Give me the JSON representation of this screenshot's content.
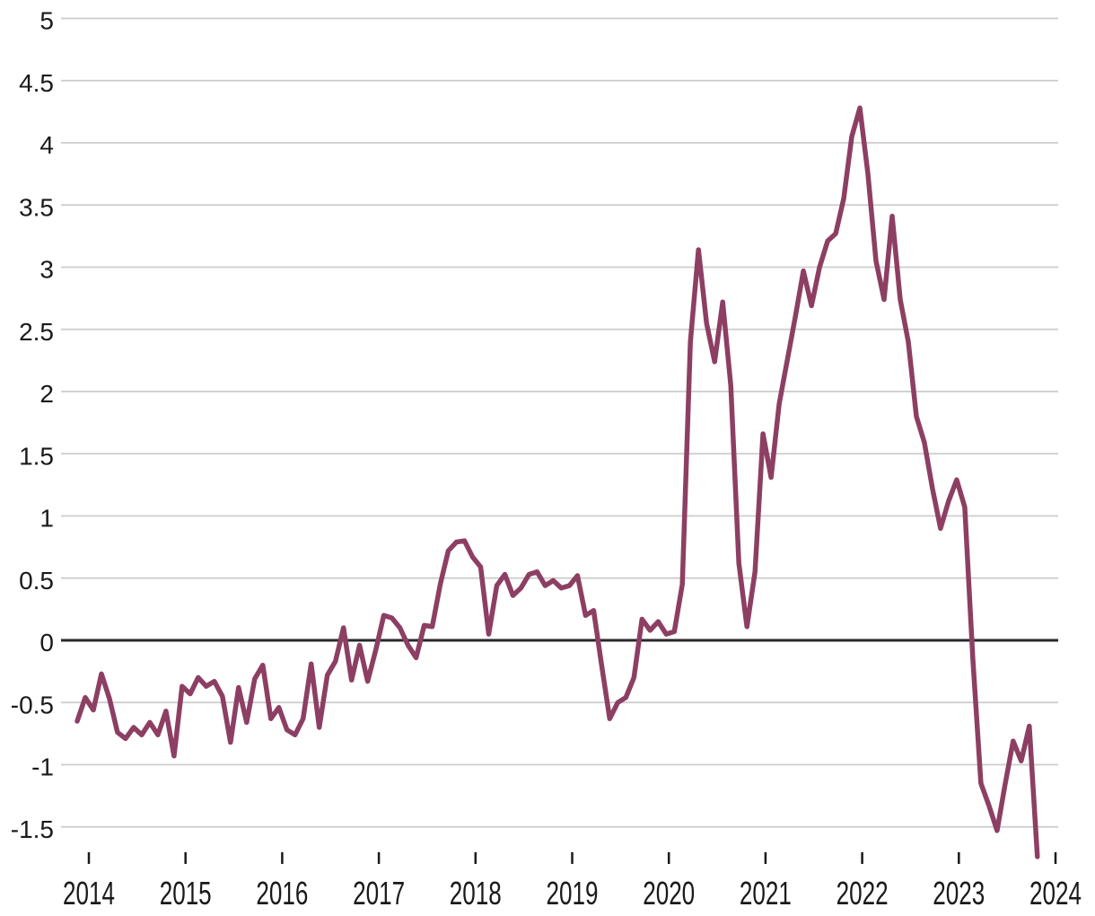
{
  "chart_data": {
    "type": "line",
    "title": "",
    "xlabel": "",
    "ylabel": "",
    "grid": "horizontal",
    "zero_line": true,
    "legend": "none",
    "x_tick_labels": [
      "2014",
      "2015",
      "2016",
      "2017",
      "2018",
      "2019",
      "2020",
      "2021",
      "2022",
      "2023",
      "2024"
    ],
    "y_tick_labels": [
      "5",
      "4.5",
      "4",
      "3.5",
      "3",
      "2.5",
      "2",
      "1.5",
      "1",
      "0.5",
      "0",
      "-0.5",
      "-1",
      "-1.5"
    ],
    "y_tick_values": [
      5,
      4.5,
      4,
      3.5,
      3,
      2.5,
      2,
      1.5,
      1,
      0.5,
      0,
      -0.5,
      -1,
      -1.5
    ],
    "ylim": [
      -1.78,
      5.06
    ],
    "x_years": [
      2014,
      2024
    ],
    "series": [
      {
        "name": "value",
        "frequency": "monthly",
        "start": "2014-01",
        "end": "2023-12",
        "values": [
          -0.65,
          -0.46,
          -0.56,
          -0.27,
          -0.47,
          -0.74,
          -0.79,
          -0.7,
          -0.76,
          -0.66,
          -0.76,
          -0.57,
          -0.93,
          -0.37,
          -0.43,
          -0.3,
          -0.37,
          -0.33,
          -0.45,
          -0.82,
          -0.38,
          -0.66,
          -0.31,
          -0.2,
          -0.63,
          -0.54,
          -0.72,
          -0.76,
          -0.63,
          -0.19,
          -0.7,
          -0.28,
          -0.17,
          0.1,
          -0.32,
          -0.04,
          -0.33,
          -0.08,
          0.2,
          0.18,
          0.1,
          -0.04,
          -0.14,
          0.12,
          0.11,
          0.45,
          0.72,
          0.79,
          0.8,
          0.67,
          0.59,
          0.05,
          0.44,
          0.53,
          0.36,
          0.42,
          0.53,
          0.55,
          0.44,
          0.48,
          0.42,
          0.44,
          0.52,
          0.2,
          0.24,
          -0.2,
          -0.63,
          -0.5,
          -0.46,
          -0.3,
          0.17,
          0.08,
          0.15,
          0.05,
          0.07,
          0.45,
          2.4,
          3.14,
          2.55,
          2.24,
          2.72,
          2.05,
          0.62,
          0.11,
          0.55,
          1.66,
          1.31,
          1.9,
          2.25,
          2.6,
          2.97,
          2.69,
          3.0,
          3.21,
          3.27,
          3.55,
          4.05,
          4.28,
          3.75,
          3.05,
          2.74,
          3.41,
          2.74,
          2.4,
          1.8,
          1.59,
          1.22,
          0.9,
          1.12,
          1.29,
          1.07,
          -0.15,
          -1.15,
          -1.33,
          -1.53,
          -1.16,
          -0.81,
          -0.97,
          -0.69,
          -1.74
        ]
      }
    ],
    "colors": {
      "line": "#8d3f63",
      "gridline": "#cccccc",
      "zero_line": "#29272a",
      "tick_text": "#1a1a1a",
      "background": "#ffffff"
    }
  }
}
